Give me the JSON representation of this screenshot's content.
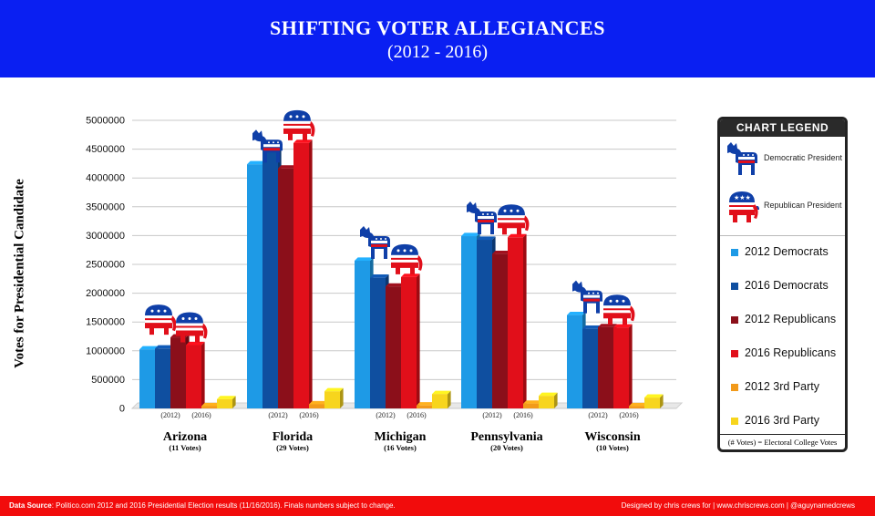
{
  "header": {
    "title": "SHIFTING VOTER ALLEGIANCES",
    "subtitle": "(2012 - 2016)"
  },
  "chart_data": {
    "type": "bar",
    "title": "SHIFTING VOTER ALLEGIANCES",
    "subtitle": "(2012 - 2016)",
    "ylabel": "Votes for Presidential Candidate",
    "ylim": [
      0,
      5000000
    ],
    "yticks": [
      "0",
      "500000",
      "1000000",
      "1500000",
      "2000000",
      "2500000",
      "3000000",
      "3500000",
      "4000000",
      "4500000",
      "5000000"
    ],
    "categories": [
      "Arizona",
      "Florida",
      "Michigan",
      "Pennsylvania",
      "Wisconsin"
    ],
    "category_notes": [
      "(11 Votes)",
      "(29 Votes)",
      "(16 Votes)",
      "(20 Votes)",
      "(10 Votes)"
    ],
    "year_labels": [
      "(2012)",
      "(2016)"
    ],
    "series": [
      {
        "name": "2012 Democrats",
        "color": "#1e9ae6",
        "values": [
          1025000,
          4237000,
          2564000,
          2990000,
          1620000
        ]
      },
      {
        "name": "2016 Democrats",
        "color": "#0f4fa0",
        "values": [
          1040000,
          4500000,
          2268000,
          2927000,
          1382000
        ]
      },
      {
        "name": "2012 Republicans",
        "color": "#8b0f1a",
        "values": [
          1233000,
          4163000,
          2115000,
          2680000,
          1410000
        ]
      },
      {
        "name": "2016 Republicans",
        "color": "#e10f1a",
        "values": [
          1100000,
          4606000,
          2280000,
          2970000,
          1405000
        ]
      },
      {
        "name": "2012 3rd Party",
        "color": "#f29a1a",
        "values": [
          40000,
          72000,
          51000,
          82000,
          39000
        ]
      },
      {
        "name": "2016 3rd Party",
        "color": "#f7d51d",
        "values": [
          160000,
          297000,
          250000,
          218000,
          188000
        ]
      }
    ],
    "winners": [
      {
        "2012": "republican",
        "2016": "republican"
      },
      {
        "2012": "democratic",
        "2016": "republican"
      },
      {
        "2012": "democratic",
        "2016": "republican"
      },
      {
        "2012": "democratic",
        "2016": "republican"
      },
      {
        "2012": "democratic",
        "2016": "republican"
      }
    ],
    "grid": true,
    "legend_position": "right"
  },
  "legend": {
    "title": "CHART LEGEND",
    "democratic_label": "Democratic President",
    "republican_label": "Republican President",
    "footnote": "(# Votes) = Electoral College Votes"
  },
  "footer": {
    "source_label": "Data Source",
    "source_text": ": Politico.com 2012 and 2016 Presidential Election results (11/16/2016). Finals numbers subject to change.",
    "credit_text": "Designed by chris crews for",
    "credit_tail": "| www.chriscrews.com | @aguynamedcrews"
  },
  "colors": {
    "header_bg": "#0a1ff2",
    "footer_bg": "#f20c0c"
  }
}
